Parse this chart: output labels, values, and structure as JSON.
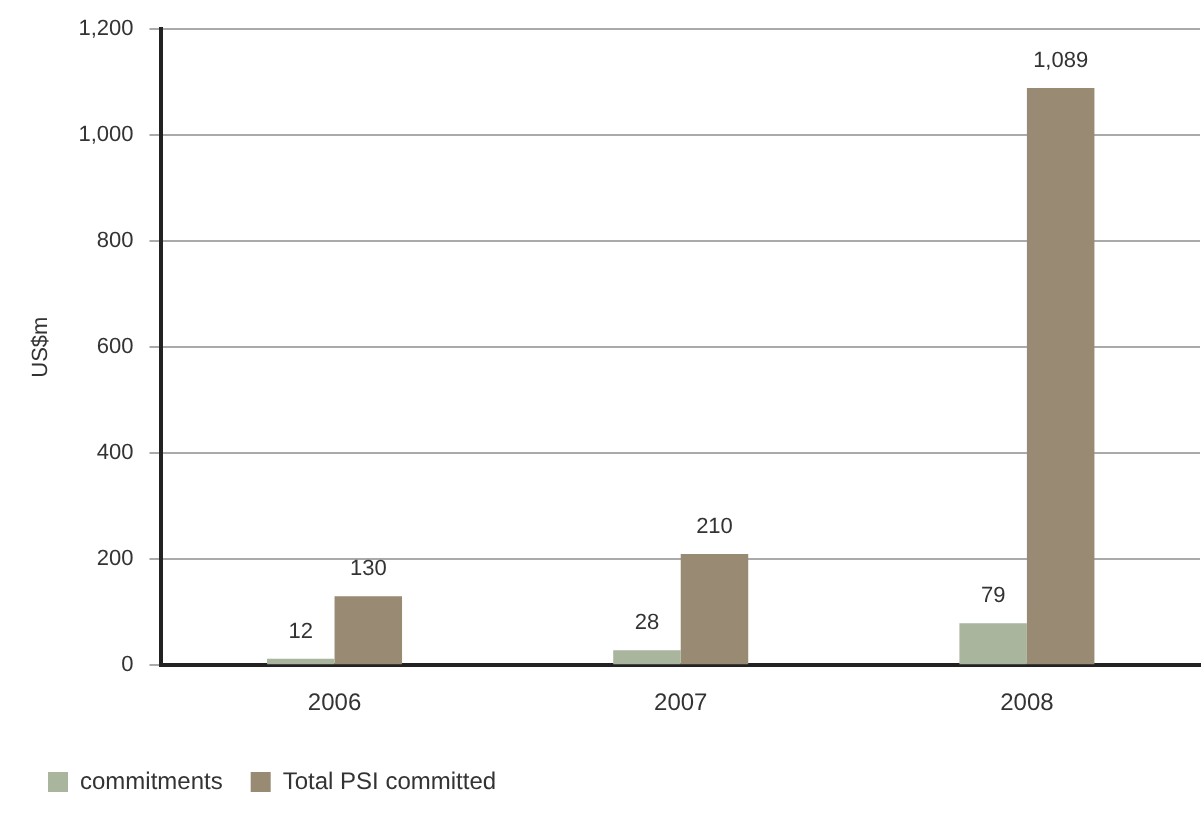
{
  "chart_data": {
    "type": "bar",
    "ylabel": "US$m",
    "categories": [
      "2006",
      "2007",
      "2008"
    ],
    "series": [
      {
        "name": "commitments",
        "color": "#a9b59c",
        "values": [
          12,
          28,
          79
        ],
        "value_labels": [
          "12",
          "28",
          "79"
        ]
      },
      {
        "name": "Total PSI committed",
        "color": "#988a73",
        "values": [
          130,
          210,
          1089
        ],
        "value_labels": [
          "130",
          "210",
          "1,089"
        ]
      }
    ],
    "ylim": [
      0,
      1200
    ],
    "yticks": [
      {
        "value": 0,
        "label": "0"
      },
      {
        "value": 200,
        "label": "200"
      },
      {
        "value": 400,
        "label": "400"
      },
      {
        "value": 600,
        "label": "600"
      },
      {
        "value": 800,
        "label": "800"
      },
      {
        "value": 1000,
        "label": "1,000"
      },
      {
        "value": 1200,
        "label": "1,200"
      }
    ],
    "grid": "y",
    "legend": "bottom left"
  }
}
